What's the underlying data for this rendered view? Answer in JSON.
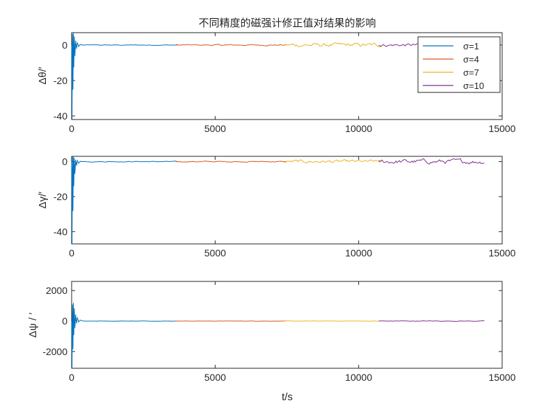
{
  "chart_data": {
    "type": "line",
    "title": "不同精度的磁强计修正值对结果的影响",
    "legend": {
      "placement": "top-right",
      "entries": [
        "σ=1",
        "σ=4",
        "σ=7",
        "σ=10"
      ]
    },
    "series_colors": [
      "#0072BD",
      "#D95319",
      "#EDB120",
      "#7E2F8E"
    ],
    "series": [
      {
        "name": "σ=1",
        "x_range": [
          0,
          3700
        ]
      },
      {
        "name": "σ=4",
        "x_range": [
          3600,
          7500
        ]
      },
      {
        "name": "σ=7",
        "x_range": [
          7400,
          10800
        ]
      },
      {
        "name": "σ=10",
        "x_range": [
          10700,
          14400
        ]
      }
    ],
    "panels": [
      {
        "id": "pitch",
        "ylabel": "Δθ/′",
        "xlim": [
          0,
          15000
        ],
        "ylim": [
          -42,
          7
        ],
        "xticks": [
          0,
          5000,
          10000,
          15000
        ],
        "xtick_labels": [
          "0",
          "5000",
          "10000",
          "15000"
        ],
        "yticks": [
          0,
          -20,
          -40
        ],
        "ytick_labels": [
          "0",
          "-20",
          "-40"
        ],
        "transient_min": -42,
        "transient_max": 7,
        "noise": [
          0.3,
          0.5,
          1.5,
          1.2
        ]
      },
      {
        "id": "roll",
        "ylabel": "Δγ/′",
        "xlim": [
          0,
          15000
        ],
        "ylim": [
          -47,
          3
        ],
        "xticks": [
          0,
          5000,
          10000,
          15000
        ],
        "xtick_labels": [
          "0",
          "5000",
          "10000",
          "15000"
        ],
        "yticks": [
          0,
          -20,
          -40
        ],
        "ytick_labels": [
          "0",
          "-20",
          "-40"
        ],
        "transient_min": -47,
        "transient_max": 3,
        "noise": [
          0.3,
          0.4,
          1.2,
          1.8
        ]
      },
      {
        "id": "yaw",
        "ylabel": "Δψ / ′",
        "xlim": [
          0,
          15000
        ],
        "ylim": [
          -3100,
          2600
        ],
        "xticks": [
          0,
          5000,
          10000,
          15000
        ],
        "xtick_labels": [
          "0",
          "5000",
          "10000",
          "15000"
        ],
        "yticks": [
          2000,
          0,
          -2000
        ],
        "ytick_labels": [
          "2000",
          "0",
          "-2000"
        ],
        "transient_min": -3100,
        "transient_max": 1200,
        "noise": [
          10,
          10,
          12,
          25
        ]
      }
    ],
    "xlabel": "t/s"
  }
}
